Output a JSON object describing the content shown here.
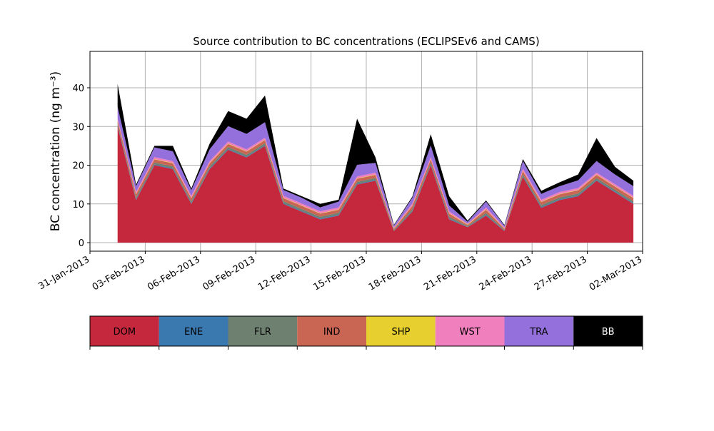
{
  "chart_data": {
    "type": "stacked_area",
    "title": "Source contribution to BC concentrations (ECLIPSEv6 and CAMS)",
    "ylabel": "BC concentration (ng m⁻³)",
    "x": [
      "2013-02-01",
      "2013-02-02",
      "2013-02-03",
      "2013-02-04",
      "2013-02-05",
      "2013-02-06",
      "2013-02-07",
      "2013-02-08",
      "2013-02-09",
      "2013-02-10",
      "2013-02-11",
      "2013-02-12",
      "2013-02-13",
      "2013-02-14",
      "2013-02-15",
      "2013-02-16",
      "2013-02-17",
      "2013-02-18",
      "2013-02-19",
      "2013-02-20",
      "2013-02-21",
      "2013-02-22",
      "2013-02-23",
      "2013-02-24",
      "2013-02-25",
      "2013-02-26",
      "2013-02-27",
      "2013-02-28",
      "2013-03-01"
    ],
    "series": [
      {
        "name": "DOM",
        "color": "#c5283d",
        "values": [
          30,
          11,
          20,
          19,
          10,
          19,
          24,
          22,
          25,
          10,
          8,
          6,
          7,
          15,
          16,
          3,
          8,
          20,
          6,
          4,
          7,
          3,
          17,
          9,
          11,
          12,
          16,
          13,
          10
        ]
      },
      {
        "name": "ENE",
        "color": "#3a78b0",
        "values": [
          0.2,
          0.2,
          0.2,
          0.2,
          0.2,
          0.2,
          0.2,
          0.2,
          0.2,
          0.2,
          0.2,
          0.2,
          0.2,
          0.2,
          0.2,
          0.1,
          0.2,
          0.2,
          0.2,
          0.1,
          0.2,
          0.1,
          0.2,
          0.2,
          0.2,
          0.2,
          0.2,
          0.2,
          0.2
        ]
      },
      {
        "name": "FLR",
        "color": "#6e8070",
        "values": [
          0.5,
          0.5,
          0.5,
          0.5,
          0.5,
          0.5,
          0.5,
          0.5,
          0.5,
          0.5,
          0.5,
          0.5,
          0.5,
          0.5,
          0.5,
          0.2,
          0.5,
          0.5,
          0.5,
          0.2,
          0.5,
          0.2,
          0.5,
          0.5,
          0.5,
          0.5,
          0.5,
          0.5,
          0.5
        ]
      },
      {
        "name": "IND",
        "color": "#c96553",
        "values": [
          0.8,
          0.8,
          0.8,
          0.8,
          0.8,
          0.8,
          0.8,
          0.8,
          0.8,
          0.8,
          0.8,
          0.8,
          0.8,
          0.8,
          0.8,
          0.3,
          0.8,
          0.8,
          0.8,
          0.3,
          0.8,
          0.3,
          0.8,
          0.8,
          0.8,
          0.8,
          0.8,
          0.8,
          0.8
        ]
      },
      {
        "name": "SHP",
        "color": "#e6cf2f",
        "values": [
          0.1,
          0.1,
          0.1,
          0.1,
          0.1,
          0.1,
          0.1,
          0.1,
          0.1,
          0.1,
          0.1,
          0.1,
          0.1,
          0.1,
          0.1,
          0.1,
          0.1,
          0.1,
          0.1,
          0.1,
          0.1,
          0.1,
          0.1,
          0.1,
          0.1,
          0.1,
          0.1,
          0.1,
          0.1
        ]
      },
      {
        "name": "WST",
        "color": "#f07fbe",
        "values": [
          0.5,
          0.5,
          0.5,
          0.5,
          0.5,
          0.5,
          0.5,
          0.5,
          0.5,
          0.5,
          0.5,
          0.5,
          0.5,
          0.5,
          0.5,
          0.2,
          0.5,
          0.5,
          0.5,
          0.2,
          0.5,
          0.2,
          0.5,
          0.5,
          0.5,
          0.5,
          0.5,
          0.5,
          0.5
        ]
      },
      {
        "name": "TRA",
        "color": "#9370db",
        "values": [
          3,
          1.5,
          2.5,
          2.5,
          1.5,
          3,
          4,
          4,
          4,
          1.5,
          1.5,
          1,
          1.5,
          3,
          2.5,
          0.5,
          1.5,
          3,
          1.5,
          0.5,
          1.5,
          0.5,
          2,
          1.5,
          1.5,
          2,
          3,
          2.5,
          2.5
        ]
      },
      {
        "name": "BB",
        "color": "#000000",
        "values": [
          5.9,
          0.4,
          0.4,
          1.4,
          0.4,
          1.5,
          3.9,
          3.9,
          6.9,
          0.4,
          0.4,
          0.9,
          0.5,
          11.9,
          1.4,
          0.2,
          0.3,
          2.9,
          2.4,
          0.3,
          0.3,
          0.2,
          0.5,
          0.8,
          1,
          1.5,
          5.9,
          2,
          1.4
        ]
      }
    ],
    "xlim": [
      "2013-01-31",
      "2013-03-02"
    ],
    "xticks": [
      {
        "value": "2013-01-31",
        "label": "31-Jan-2013"
      },
      {
        "value": "2013-02-03",
        "label": "03-Feb-2013"
      },
      {
        "value": "2013-02-06",
        "label": "06-Feb-2013"
      },
      {
        "value": "2013-02-09",
        "label": "09-Feb-2013"
      },
      {
        "value": "2013-02-12",
        "label": "12-Feb-2013"
      },
      {
        "value": "2013-02-15",
        "label": "15-Feb-2013"
      },
      {
        "value": "2013-02-18",
        "label": "18-Feb-2013"
      },
      {
        "value": "2013-02-21",
        "label": "21-Feb-2013"
      },
      {
        "value": "2013-02-24",
        "label": "24-Feb-2013"
      },
      {
        "value": "2013-02-27",
        "label": "27-Feb-2013"
      },
      {
        "value": "2013-03-02",
        "label": "02-Mar-2013"
      }
    ],
    "ylim": [
      -2.2,
      49.4
    ],
    "yticks": [
      0,
      10,
      20,
      30,
      40
    ],
    "grid": true
  }
}
